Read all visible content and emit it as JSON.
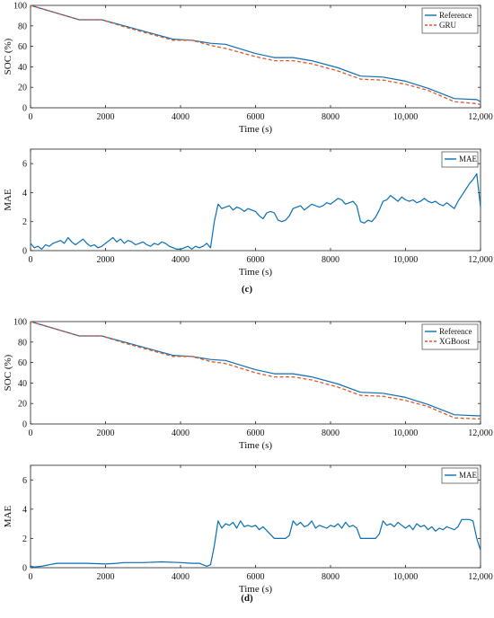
{
  "figure": {
    "caption_c": "(c)",
    "caption_d": "(d)"
  },
  "colors": {
    "reference": "#0a6eb4",
    "predicted": "#e0572a",
    "mae": "#0a6eb4",
    "axis": "#222222"
  },
  "chart_data": [
    {
      "id": "c-soc",
      "type": "line",
      "xlabel": "Time (s)",
      "ylabel": "SOC (%)",
      "xlim": [
        0,
        12000
      ],
      "ylim": [
        0,
        100
      ],
      "xticks": [
        0,
        2000,
        4000,
        6000,
        8000,
        10000,
        12000
      ],
      "xtick_labels": [
        "0",
        "2000",
        "4000",
        "6000",
        "8000",
        "10,000",
        "12,000"
      ],
      "yticks": [
        0,
        20,
        40,
        60,
        80,
        100
      ],
      "ytick_labels": [
        "0",
        "20",
        "40",
        "60",
        "80",
        "100"
      ],
      "legend_position": "top-right",
      "series": [
        {
          "name": "Reference",
          "style": "solid",
          "x": [
            0,
            1300,
            1900,
            2500,
            3300,
            3800,
            4300,
            4800,
            5200,
            6000,
            6500,
            7000,
            7500,
            8200,
            8800,
            9400,
            10000,
            10600,
            11300,
            11900,
            12000
          ],
          "y": [
            100,
            86,
            86,
            80,
            72,
            67,
            66,
            63,
            62,
            53,
            49,
            49,
            46,
            39,
            31,
            30,
            26,
            19,
            9,
            8,
            6
          ]
        },
        {
          "name": "GRU",
          "style": "dashed",
          "x": [
            0,
            1300,
            1900,
            2500,
            3300,
            3800,
            4300,
            4800,
            5200,
            6000,
            6500,
            7000,
            7500,
            8200,
            8800,
            9400,
            10000,
            10600,
            11300,
            11900,
            12000
          ],
          "y": [
            100,
            86,
            86,
            79,
            71,
            66,
            66,
            61,
            58,
            50,
            46,
            46,
            43,
            36,
            28,
            27,
            23,
            17,
            6,
            4,
            3
          ]
        }
      ]
    },
    {
      "id": "c-mae",
      "type": "line",
      "xlabel": "Time (s)",
      "ylabel": "MAE",
      "xlim": [
        0,
        12000
      ],
      "ylim": [
        0,
        7
      ],
      "xticks": [
        0,
        2000,
        4000,
        6000,
        8000,
        10000,
        12000
      ],
      "xtick_labels": [
        "0",
        "2000",
        "4000",
        "6000",
        "8000",
        "10,000",
        "12,000"
      ],
      "yticks": [
        0,
        2,
        4,
        6
      ],
      "ytick_labels": [
        "0",
        "2",
        "4",
        "6"
      ],
      "legend_position": "top-right",
      "series": [
        {
          "name": "MAE",
          "style": "solid",
          "x": [
            0,
            100,
            200,
            300,
            400,
            500,
            600,
            700,
            800,
            900,
            1000,
            1100,
            1200,
            1300,
            1400,
            1500,
            1600,
            1700,
            1800,
            1900,
            2000,
            2100,
            2200,
            2300,
            2400,
            2500,
            2600,
            2700,
            2800,
            2900,
            3000,
            3100,
            3200,
            3300,
            3400,
            3500,
            3600,
            3700,
            3800,
            3900,
            4000,
            4100,
            4200,
            4300,
            4400,
            4500,
            4600,
            4700,
            4800,
            4900,
            5000,
            5100,
            5200,
            5300,
            5400,
            5500,
            5600,
            5700,
            5800,
            5900,
            6000,
            6100,
            6200,
            6300,
            6400,
            6500,
            6600,
            6700,
            6800,
            6900,
            7000,
            7100,
            7200,
            7300,
            7400,
            7500,
            7600,
            7700,
            7800,
            7900,
            8000,
            8100,
            8200,
            8300,
            8400,
            8500,
            8600,
            8700,
            8800,
            8900,
            9000,
            9100,
            9200,
            9300,
            9400,
            9500,
            9600,
            9700,
            9800,
            9900,
            10000,
            10100,
            10200,
            10300,
            10400,
            10500,
            10600,
            10700,
            10800,
            10900,
            11000,
            11100,
            11200,
            11300,
            11400,
            11500,
            11600,
            11700,
            11800,
            11900,
            12000
          ],
          "y": [
            0.5,
            0.2,
            0.3,
            0.1,
            0.4,
            0.3,
            0.5,
            0.6,
            0.7,
            0.5,
            0.9,
            0.6,
            0.4,
            0.6,
            0.8,
            0.5,
            0.3,
            0.4,
            0.2,
            0.3,
            0.5,
            0.7,
            0.9,
            0.6,
            0.8,
            0.5,
            0.7,
            0.6,
            0.4,
            0.5,
            0.6,
            0.4,
            0.3,
            0.5,
            0.4,
            0.6,
            0.5,
            0.3,
            0.2,
            0.1,
            0.1,
            0.2,
            0.3,
            0.1,
            0.3,
            0.2,
            0.3,
            0.5,
            0.2,
            2.0,
            3.2,
            2.9,
            3.0,
            3.1,
            2.8,
            3.0,
            2.9,
            2.7,
            2.9,
            2.8,
            2.7,
            2.4,
            2.2,
            2.6,
            2.7,
            2.6,
            2.1,
            2.0,
            2.1,
            2.4,
            2.9,
            3.0,
            3.1,
            2.8,
            3.0,
            3.2,
            3.1,
            3.0,
            3.1,
            3.3,
            3.2,
            3.4,
            3.6,
            3.5,
            3.2,
            3.3,
            3.4,
            3.1,
            2.0,
            1.9,
            2.1,
            2.0,
            2.3,
            2.8,
            3.4,
            3.5,
            3.8,
            3.6,
            3.4,
            3.7,
            3.5,
            3.4,
            3.5,
            3.3,
            3.4,
            3.6,
            3.4,
            3.3,
            3.4,
            3.2,
            3.1,
            3.3,
            3.1,
            2.9,
            3.4,
            3.8,
            4.2,
            4.6,
            4.9,
            5.3,
            3.0
          ]
        }
      ]
    },
    {
      "id": "d-soc",
      "type": "line",
      "xlabel": "Time (s)",
      "ylabel": "SOC (%)",
      "xlim": [
        0,
        12000
      ],
      "ylim": [
        0,
        100
      ],
      "xticks": [
        0,
        2000,
        4000,
        6000,
        8000,
        10000,
        12000
      ],
      "xtick_labels": [
        "0",
        "2000",
        "4000",
        "6000",
        "8000",
        "10,000",
        "12,000"
      ],
      "yticks": [
        0,
        20,
        40,
        60,
        80,
        100
      ],
      "ytick_labels": [
        "0",
        "20",
        "40",
        "60",
        "80",
        "100"
      ],
      "legend_position": "top-right",
      "series": [
        {
          "name": "Reference",
          "style": "solid",
          "x": [
            0,
            1300,
            1900,
            2500,
            3300,
            3800,
            4300,
            4800,
            5200,
            6000,
            6500,
            7000,
            7500,
            8200,
            8800,
            9400,
            10000,
            10600,
            11300,
            11900,
            12000
          ],
          "y": [
            100,
            86,
            86,
            80,
            72,
            67,
            66,
            63,
            62,
            53,
            49,
            49,
            46,
            39,
            31,
            30,
            26,
            19,
            9,
            8,
            8
          ]
        },
        {
          "name": "XGBoost",
          "style": "dashed",
          "x": [
            0,
            1300,
            1900,
            2500,
            3300,
            3800,
            4300,
            4800,
            5200,
            6000,
            6500,
            7000,
            7500,
            8200,
            8800,
            9400,
            10000,
            10600,
            11300,
            11900,
            12000
          ],
          "y": [
            100,
            86,
            86,
            79,
            71,
            66,
            66,
            61,
            59,
            50,
            46,
            46,
            43,
            36,
            28,
            27,
            23,
            17,
            6,
            5,
            5
          ]
        }
      ]
    },
    {
      "id": "d-mae",
      "type": "line",
      "xlabel": "Time (s)",
      "ylabel": "MAE",
      "xlim": [
        0,
        12000
      ],
      "ylim": [
        0,
        7
      ],
      "xticks": [
        0,
        2000,
        4000,
        6000,
        8000,
        10000,
        12000
      ],
      "xtick_labels": [
        "0",
        "2000",
        "4000",
        "6000",
        "8000",
        "10,000",
        "12,000"
      ],
      "yticks": [
        0,
        2,
        4,
        6
      ],
      "ytick_labels": [
        "0",
        "2",
        "4",
        "6"
      ],
      "legend_position": "top-right",
      "series": [
        {
          "name": "MAE",
          "style": "solid",
          "x": [
            0,
            100,
            300,
            500,
            700,
            900,
            1100,
            1500,
            2000,
            2300,
            2500,
            3000,
            3500,
            4000,
            4300,
            4500,
            4700,
            4800,
            4900,
            5000,
            5100,
            5200,
            5300,
            5400,
            5500,
            5600,
            5700,
            5800,
            5900,
            6000,
            6100,
            6200,
            6500,
            6700,
            6800,
            6900,
            7000,
            7100,
            7200,
            7300,
            7400,
            7500,
            7600,
            7700,
            7800,
            7900,
            8000,
            8100,
            8200,
            8300,
            8400,
            8500,
            8600,
            8700,
            8800,
            9200,
            9300,
            9400,
            9500,
            9600,
            9700,
            9800,
            9900,
            10000,
            10100,
            10200,
            10300,
            10400,
            10500,
            10600,
            10700,
            10800,
            10900,
            11000,
            11100,
            11200,
            11300,
            11400,
            11500,
            11600,
            11700,
            11800,
            11900,
            12000
          ],
          "y": [
            0.1,
            0.05,
            0.1,
            0.2,
            0.3,
            0.3,
            0.3,
            0.3,
            0.25,
            0.3,
            0.35,
            0.35,
            0.4,
            0.35,
            0.3,
            0.3,
            0.1,
            0.2,
            1.5,
            3.2,
            2.7,
            3.0,
            2.9,
            3.1,
            2.7,
            3.2,
            2.8,
            2.9,
            2.8,
            2.9,
            2.6,
            2.8,
            2.0,
            2.0,
            2.0,
            2.2,
            3.2,
            2.9,
            3.1,
            2.8,
            2.9,
            3.2,
            2.7,
            2.9,
            2.8,
            2.7,
            2.9,
            2.8,
            3.0,
            2.7,
            3.1,
            2.8,
            2.9,
            2.7,
            2.0,
            2.0,
            2.3,
            3.2,
            2.9,
            3.0,
            2.8,
            3.1,
            2.9,
            2.7,
            2.9,
            2.6,
            3.0,
            2.8,
            2.9,
            2.6,
            2.8,
            2.5,
            2.7,
            2.6,
            2.8,
            2.7,
            2.6,
            2.8,
            3.3,
            3.3,
            3.3,
            3.2,
            2.0,
            1.2
          ]
        }
      ]
    }
  ]
}
